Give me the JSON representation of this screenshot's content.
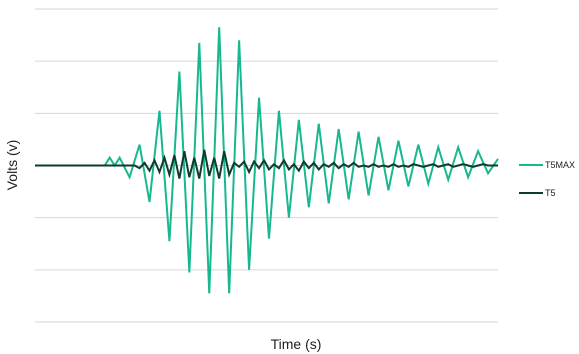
{
  "chart_data": {
    "type": "line",
    "title": "",
    "xlabel": "Time (s)",
    "ylabel": "Volts (v)",
    "ylim": [
      -6,
      6
    ],
    "xlim": [
      0,
      93
    ],
    "y_gridlines": [
      -6,
      -4,
      -2,
      0,
      2,
      4,
      6
    ],
    "grid": "horizontal",
    "legend_position": "right",
    "series": [
      {
        "name": "T5MAX",
        "color": "#17b890",
        "x": [
          0,
          14,
          15,
          16,
          17,
          19,
          21,
          23,
          25,
          27,
          29,
          31,
          33,
          35,
          37,
          39,
          41,
          43,
          45,
          47,
          49,
          51,
          53,
          55,
          57,
          59,
          61,
          63,
          65,
          67,
          69,
          71,
          73,
          75,
          77,
          79,
          81,
          83,
          85,
          87,
          89,
          91,
          93
        ],
        "y": [
          0,
          0,
          0.3,
          0,
          0.3,
          -0.45,
          0.8,
          -1.4,
          2.1,
          -2.9,
          3.6,
          -4.1,
          4.7,
          -4.9,
          5.3,
          -4.9,
          4.8,
          -4,
          2.6,
          -2.8,
          2.1,
          -2,
          1.75,
          -1.6,
          1.6,
          -1.45,
          1.4,
          -1.3,
          1.3,
          -1.15,
          1.1,
          -0.95,
          0.95,
          -0.8,
          0.8,
          -0.7,
          0.7,
          -0.55,
          0.7,
          -0.45,
          0.55,
          -0.3,
          0.25
        ]
      },
      {
        "name": "T5",
        "color": "#0d3b2e",
        "x": [
          0,
          20,
          21,
          22,
          23,
          24,
          25,
          26,
          27,
          28,
          29,
          30,
          31,
          32,
          33,
          34,
          35,
          36,
          37,
          38,
          39,
          40,
          41,
          42,
          43,
          44,
          45,
          46,
          47,
          48,
          49,
          50,
          51,
          52,
          53,
          54,
          55,
          56,
          57,
          58,
          59,
          60,
          61,
          62,
          63,
          64,
          65,
          66,
          67,
          68,
          69,
          70,
          71,
          72,
          73,
          74,
          75,
          76,
          77,
          78,
          79,
          80,
          81,
          82,
          83,
          84,
          85,
          86,
          87,
          88,
          89,
          90,
          91,
          92,
          93
        ],
        "y": [
          0,
          0,
          -0.1,
          0.1,
          -0.2,
          0.2,
          -0.25,
          0.3,
          -0.35,
          0.4,
          -0.5,
          0.55,
          -0.45,
          0.3,
          -0.5,
          0.6,
          -0.4,
          0.3,
          -0.5,
          0.55,
          -0.35,
          0.1,
          -0.05,
          0.15,
          -0.25,
          0.15,
          -0.1,
          0.2,
          -0.15,
          0.05,
          -0.1,
          0.2,
          -0.15,
          0.05,
          -0.2,
          0.15,
          -0.1,
          0.1,
          -0.15,
          0.05,
          -0.05,
          0.1,
          -0.1,
          0.05,
          -0.05,
          0.1,
          -0.05,
          0,
          -0.05,
          0.05,
          -0.05,
          0,
          -0.05,
          0.05,
          -0.05,
          0,
          -0.05,
          0.05,
          0,
          -0.05,
          0,
          0.05,
          -0.05,
          0,
          0.05,
          -0.05,
          0,
          0.05,
          0,
          -0.05,
          0,
          0.05,
          0,
          0,
          0
        ]
      }
    ]
  }
}
